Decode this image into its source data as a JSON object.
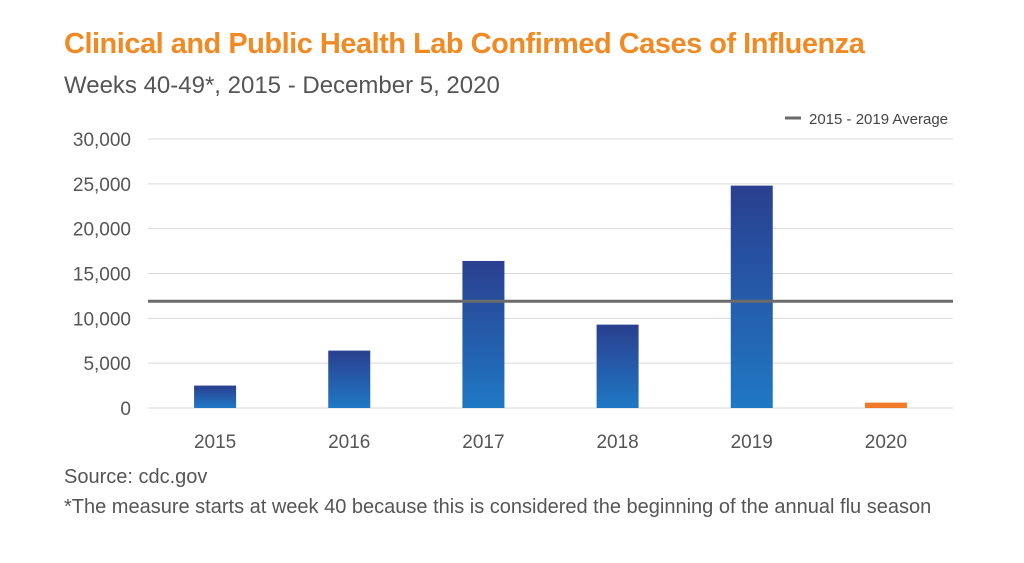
{
  "header": {
    "title": "Clinical and Public Health Lab Confirmed Cases of Influenza",
    "subtitle": "Weeks 40-49*, 2015 - December 5, 2020"
  },
  "footer": {
    "source": "Source: cdc.gov",
    "note": "*The measure starts at week 40 because this is considered the beginning of the annual flu season"
  },
  "colors": {
    "accent": "#f08a24",
    "bar_top_dark": "#2a3f8f",
    "bar_base": "#1f73c0",
    "bar_2020": "#f07a2a",
    "average_line": "#6b6b6b",
    "grid": "#d9d9d9"
  },
  "chart_data": {
    "type": "bar",
    "title": "Clinical and Public Health Lab Confirmed Cases of Influenza",
    "subtitle": "Weeks 40-49*, 2015 - December 5, 2020",
    "categories": [
      "2015",
      "2016",
      "2017",
      "2018",
      "2019",
      "2020"
    ],
    "values": [
      2500,
      6400,
      16400,
      9300,
      24800,
      600
    ],
    "ylim": [
      0,
      30000
    ],
    "yticks": [
      0,
      5000,
      10000,
      15000,
      20000,
      25000,
      30000
    ],
    "ytick_labels": [
      "0",
      "5,000",
      "10,000",
      "15,000",
      "20,000",
      "25,000",
      "30,000"
    ],
    "grid": true,
    "reference_line": {
      "name": "2015 - 2019 Average",
      "value": 11900
    },
    "legend": {
      "position": "top-right",
      "entries": [
        "2015 - 2019 Average"
      ]
    }
  }
}
